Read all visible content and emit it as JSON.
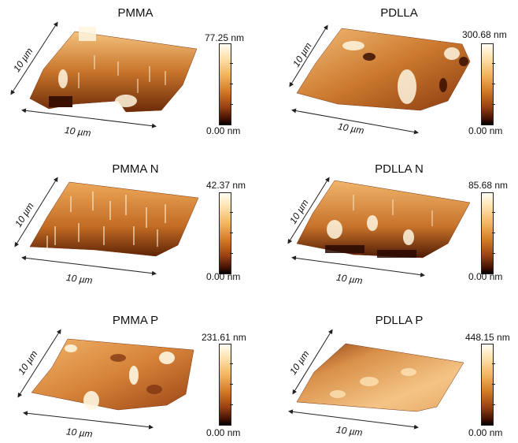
{
  "panels": [
    {
      "title": "PMMA",
      "max": "77.25 nm",
      "min": "0.00 nm",
      "dim_x": "10 µm",
      "dim_y": "10 µm"
    },
    {
      "title": "PDLLA",
      "max": "300.68 nm",
      "min": "0.00 nm",
      "dim_x": "10 µm",
      "dim_y": "10 µm"
    },
    {
      "title": "PMMA N",
      "max": "42.37 nm",
      "min": "0.00 nm",
      "dim_x": "10 µm",
      "dim_y": "10 µm"
    },
    {
      "title": "PDLLA N",
      "max": "85.68 nm",
      "min": "0.00 nm",
      "dim_x": "10 µm",
      "dim_y": "10 µm"
    },
    {
      "title": "PMMA P",
      "max": "231.61 nm",
      "min": "0.00 nm",
      "dim_x": "10 µm",
      "dim_y": "10 µm"
    },
    {
      "title": "PDLLA P",
      "max": "448.15 nm",
      "min": "0.00 nm",
      "dim_x": "10 µm",
      "dim_y": "10 µm"
    }
  ],
  "colors": {
    "colormap_top": "#fffdf3",
    "colormap_mid": "#d27d28",
    "colormap_bottom": "#000000",
    "surface_base": "#c8752b"
  }
}
